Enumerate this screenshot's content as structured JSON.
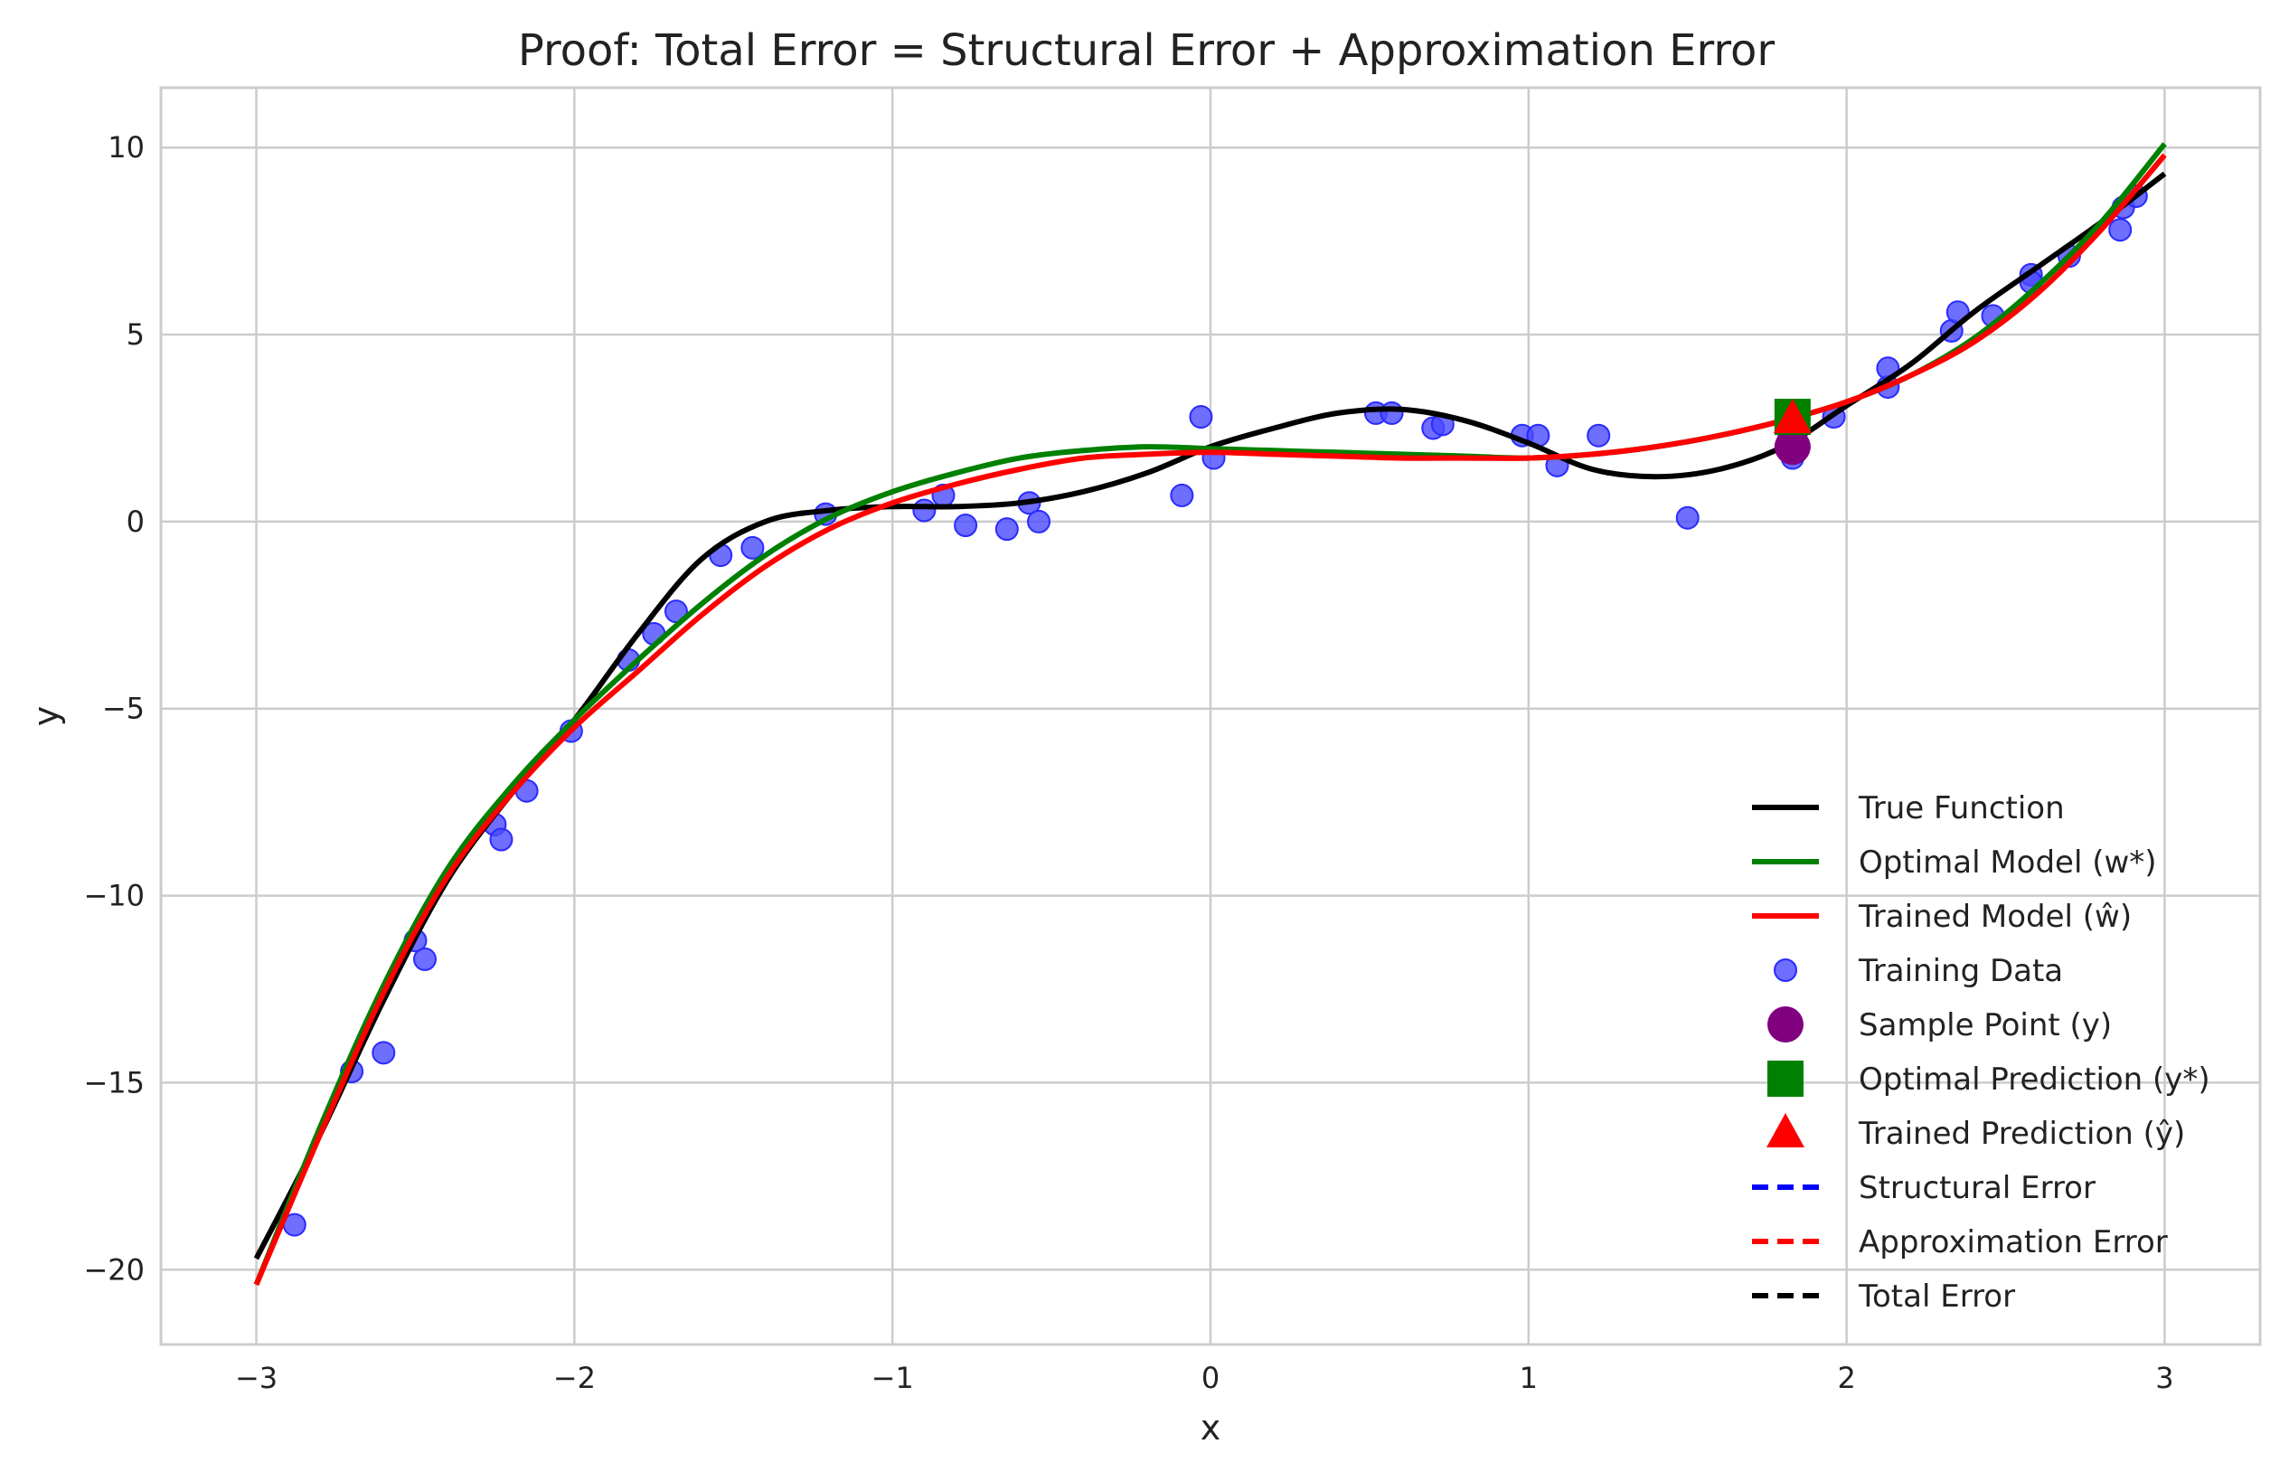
{
  "chart_data": {
    "type": "line",
    "title": "Proof: Total Error = Structural Error + Approximation Error",
    "xlabel": "x",
    "ylabel": "y",
    "xlim": [
      -3.3,
      3.3
    ],
    "ylim": [
      -22.0,
      11.6
    ],
    "x_ticks": [
      -3,
      -2,
      -1,
      0,
      1,
      2,
      3
    ],
    "x_tick_labels": [
      "−3",
      "−2",
      "−1",
      "0",
      "1",
      "2",
      "3"
    ],
    "y_ticks": [
      -20,
      -15,
      -10,
      -5,
      0,
      5,
      10
    ],
    "y_tick_labels": [
      "−20",
      "−15",
      "−10",
      "−5",
      "0",
      "5",
      "10"
    ],
    "grid": true,
    "legend_position": "lower-right",
    "colors": {
      "true_function": "#000000",
      "optimal_model": "#008000",
      "trained_model": "#ff0000",
      "training_data": "#4a4aff",
      "sample_point": "#800080",
      "optimal_prediction": "#008000",
      "trained_prediction": "#ff0000",
      "structural_error": "#0000ff",
      "approximation_error": "#ff0000",
      "total_error": "#000000"
    },
    "series": [
      {
        "name": "True Function",
        "kind": "line",
        "x": [
          -3.0,
          -2.8,
          -2.6,
          -2.4,
          -2.2,
          -2.0,
          -1.8,
          -1.6,
          -1.4,
          -1.2,
          -1.0,
          -0.8,
          -0.6,
          -0.4,
          -0.2,
          0.0,
          0.2,
          0.4,
          0.6,
          0.8,
          1.0,
          1.2,
          1.4,
          1.6,
          1.8,
          2.0,
          2.2,
          2.4,
          2.6,
          2.8,
          3.0
        ],
        "y": [
          -19.7,
          -16.4,
          -12.8,
          -9.6,
          -7.3,
          -5.3,
          -3.0,
          -1.0,
          0.0,
          0.3,
          0.4,
          0.4,
          0.5,
          0.8,
          1.3,
          2.0,
          2.5,
          2.9,
          3.0,
          2.7,
          2.1,
          1.4,
          1.2,
          1.4,
          2.0,
          3.1,
          4.2,
          5.6,
          6.8,
          8.0,
          9.3
        ]
      },
      {
        "name": "Optimal Model (w*)",
        "kind": "line",
        "x": [
          -3.0,
          -2.8,
          -2.6,
          -2.4,
          -2.2,
          -2.0,
          -1.8,
          -1.6,
          -1.4,
          -1.2,
          -1.0,
          -0.8,
          -0.6,
          -0.4,
          -0.2,
          0.0,
          0.2,
          0.4,
          0.6,
          0.8,
          1.0,
          1.2,
          1.4,
          1.6,
          1.8,
          2.0,
          2.2,
          2.4,
          2.6,
          2.8,
          3.0
        ],
        "y": [
          -20.4,
          -16.2,
          -12.4,
          -9.3,
          -7.1,
          -5.3,
          -3.7,
          -2.2,
          -0.9,
          0.1,
          0.8,
          1.3,
          1.7,
          1.9,
          2.0,
          1.95,
          1.9,
          1.85,
          1.8,
          1.75,
          1.7,
          1.8,
          2.0,
          2.3,
          2.7,
          3.2,
          3.9,
          4.9,
          6.3,
          8.0,
          10.1
        ]
      },
      {
        "name": "Trained Model (ŵ)",
        "kind": "line",
        "x": [
          -3.0,
          -2.8,
          -2.6,
          -2.4,
          -2.2,
          -2.0,
          -1.8,
          -1.6,
          -1.4,
          -1.2,
          -1.0,
          -0.8,
          -0.6,
          -0.4,
          -0.2,
          0.0,
          0.2,
          0.4,
          0.6,
          0.8,
          1.0,
          1.2,
          1.4,
          1.6,
          1.8,
          2.0,
          2.2,
          2.4,
          2.6,
          2.8,
          3.0
        ],
        "y": [
          -20.4,
          -16.4,
          -12.6,
          -9.5,
          -7.3,
          -5.5,
          -4.0,
          -2.5,
          -1.2,
          -0.2,
          0.5,
          1.0,
          1.4,
          1.7,
          1.8,
          1.85,
          1.8,
          1.75,
          1.7,
          1.7,
          1.7,
          1.8,
          2.0,
          2.3,
          2.7,
          3.2,
          3.9,
          4.8,
          6.1,
          7.8,
          9.8
        ]
      },
      {
        "name": "Training Data",
        "kind": "scatter",
        "x": [
          -2.88,
          -2.7,
          -2.6,
          -2.5,
          -2.47,
          -2.25,
          -2.23,
          -2.15,
          -2.01,
          -1.83,
          -1.75,
          -1.68,
          -1.54,
          -1.44,
          -1.21,
          -0.9,
          -0.84,
          -0.77,
          -0.64,
          -0.57,
          -0.54,
          -0.09,
          -0.03,
          0.01,
          0.52,
          0.57,
          0.7,
          0.73,
          0.98,
          1.03,
          1.09,
          1.22,
          1.5,
          1.82,
          1.83,
          1.85,
          1.96,
          2.13,
          2.13,
          2.33,
          2.35,
          2.46,
          2.58,
          2.58,
          2.7,
          2.86,
          2.87,
          2.91
        ],
        "y": [
          -18.8,
          -14.7,
          -14.2,
          -11.2,
          -11.7,
          -8.1,
          -8.5,
          -7.2,
          -5.6,
          -3.7,
          -3.0,
          -2.4,
          -0.9,
          -0.7,
          0.2,
          0.3,
          0.7,
          -0.1,
          -0.2,
          0.5,
          0.0,
          0.7,
          2.8,
          1.7,
          2.9,
          2.9,
          2.5,
          2.6,
          2.3,
          2.3,
          1.5,
          2.3,
          0.1,
          2.3,
          1.7,
          2.0,
          2.8,
          3.6,
          4.1,
          5.1,
          5.6,
          5.5,
          6.6,
          6.4,
          7.1,
          7.8,
          8.4,
          8.7
        ]
      },
      {
        "name": "Sample Point (y)",
        "kind": "marker",
        "marker": "circle",
        "x": [
          1.83
        ],
        "y": [
          2.0
        ]
      },
      {
        "name": "Optimal Prediction (y*)",
        "kind": "marker",
        "marker": "square",
        "x": [
          1.83
        ],
        "y": [
          2.8
        ]
      },
      {
        "name": "Trained Prediction (ŷ)",
        "kind": "marker",
        "marker": "triangle",
        "x": [
          1.83
        ],
        "y": [
          2.75
        ]
      },
      {
        "name": "Structural Error",
        "kind": "segment",
        "x": [
          1.83,
          1.83
        ],
        "y": [
          2.0,
          2.8
        ]
      },
      {
        "name": "Approximation Error",
        "kind": "segment",
        "x": [
          1.83,
          1.83
        ],
        "y": [
          2.75,
          2.8
        ]
      },
      {
        "name": "Total Error",
        "kind": "segment",
        "x": [
          1.83,
          1.83
        ],
        "y": [
          2.0,
          2.75
        ]
      }
    ]
  }
}
